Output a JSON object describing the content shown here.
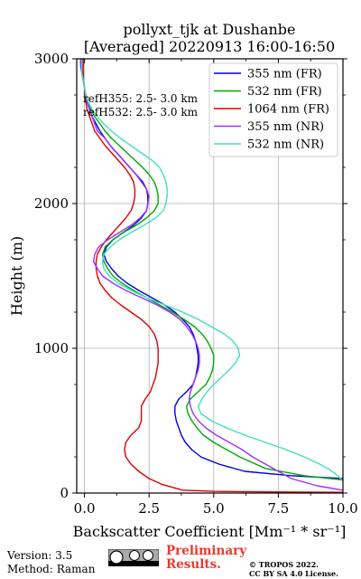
{
  "chart_data": {
    "type": "line",
    "title_line1": "pollyxt_tjk at Dushanbe",
    "title_line2": "[Averaged] 20220913 16:00-16:50",
    "xlabel": "Backscatter Coefficient [Mm⁻¹ * sr⁻¹]",
    "ylabel": "Height (m)",
    "xlim": [
      -0.3,
      10.0
    ],
    "ylim": [
      0,
      3000
    ],
    "xticks": [
      0.0,
      2.5,
      5.0,
      7.5,
      10.0
    ],
    "xtick_labels": [
      "0.0",
      "2.5",
      "5.0",
      "7.5",
      "10.0"
    ],
    "yticks": [
      0,
      1000,
      2000,
      3000
    ],
    "ytick_labels": [
      "0",
      "1000",
      "2000",
      "3000"
    ],
    "grid": true,
    "legend_position": "top-right",
    "annotations": [
      "refH355:  2.5- 3.0 km",
      "refH532:  2.5- 3.0 km"
    ],
    "series": [
      {
        "name": "355 nm (FR)",
        "color": "#0000dd",
        "points": [
          [
            10.0,
            100
          ],
          [
            8.0,
            120
          ],
          [
            6.2,
            150
          ],
          [
            5.2,
            200
          ],
          [
            4.5,
            250
          ],
          [
            4.15,
            300
          ],
          [
            3.9,
            350
          ],
          [
            3.75,
            400
          ],
          [
            3.65,
            450
          ],
          [
            3.55,
            500
          ],
          [
            3.5,
            550
          ],
          [
            3.5,
            600
          ],
          [
            3.65,
            650
          ],
          [
            3.95,
            700
          ],
          [
            4.2,
            750
          ],
          [
            4.3,
            800
          ],
          [
            4.35,
            850
          ],
          [
            4.4,
            900
          ],
          [
            4.4,
            950
          ],
          [
            4.35,
            1000
          ],
          [
            4.3,
            1050
          ],
          [
            4.2,
            1100
          ],
          [
            4.05,
            1150
          ],
          [
            3.8,
            1200
          ],
          [
            3.5,
            1250
          ],
          [
            3.1,
            1300
          ],
          [
            2.6,
            1350
          ],
          [
            2.1,
            1400
          ],
          [
            1.65,
            1450
          ],
          [
            1.3,
            1500
          ],
          [
            1.05,
            1550
          ],
          [
            0.85,
            1600
          ],
          [
            0.75,
            1650
          ],
          [
            0.85,
            1700
          ],
          [
            1.1,
            1750
          ],
          [
            1.5,
            1800
          ],
          [
            1.9,
            1850
          ],
          [
            2.2,
            1900
          ],
          [
            2.4,
            1950
          ],
          [
            2.45,
            2000
          ],
          [
            2.45,
            2050
          ],
          [
            2.4,
            2100
          ],
          [
            2.25,
            2150
          ],
          [
            2.0,
            2200
          ],
          [
            1.75,
            2250
          ],
          [
            1.5,
            2300
          ],
          [
            1.25,
            2350
          ],
          [
            1.0,
            2400
          ],
          [
            0.8,
            2450
          ],
          [
            0.6,
            2500
          ],
          [
            0.45,
            2550
          ],
          [
            0.3,
            2600
          ],
          [
            0.2,
            2650
          ],
          [
            0.1,
            2700
          ],
          [
            0.05,
            2750
          ],
          [
            0.0,
            2800
          ],
          [
            -0.05,
            2850
          ],
          [
            -0.1,
            2900
          ],
          [
            -0.1,
            2950
          ],
          [
            -0.1,
            3000
          ]
        ]
      },
      {
        "name": "532 nm (FR)",
        "color": "#00aa00",
        "points": [
          [
            10.0,
            90
          ],
          [
            8.5,
            120
          ],
          [
            7.0,
            170
          ],
          [
            6.0,
            250
          ],
          [
            5.5,
            300
          ],
          [
            5.0,
            350
          ],
          [
            4.6,
            400
          ],
          [
            4.35,
            450
          ],
          [
            4.15,
            500
          ],
          [
            4.0,
            550
          ],
          [
            3.95,
            600
          ],
          [
            4.1,
            650
          ],
          [
            4.4,
            700
          ],
          [
            4.7,
            750
          ],
          [
            4.85,
            800
          ],
          [
            4.95,
            850
          ],
          [
            5.0,
            900
          ],
          [
            5.0,
            950
          ],
          [
            4.9,
            1000
          ],
          [
            4.75,
            1050
          ],
          [
            4.55,
            1100
          ],
          [
            4.25,
            1150
          ],
          [
            3.85,
            1200
          ],
          [
            3.4,
            1250
          ],
          [
            2.9,
            1300
          ],
          [
            2.4,
            1350
          ],
          [
            1.9,
            1400
          ],
          [
            1.45,
            1450
          ],
          [
            1.1,
            1500
          ],
          [
            0.9,
            1550
          ],
          [
            0.75,
            1600
          ],
          [
            0.7,
            1650
          ],
          [
            0.8,
            1700
          ],
          [
            1.1,
            1750
          ],
          [
            1.5,
            1800
          ],
          [
            2.0,
            1850
          ],
          [
            2.4,
            1900
          ],
          [
            2.7,
            1950
          ],
          [
            2.85,
            2000
          ],
          [
            2.85,
            2050
          ],
          [
            2.8,
            2100
          ],
          [
            2.7,
            2150
          ],
          [
            2.5,
            2200
          ],
          [
            2.25,
            2250
          ],
          [
            1.95,
            2300
          ],
          [
            1.65,
            2350
          ],
          [
            1.35,
            2400
          ],
          [
            1.05,
            2450
          ],
          [
            0.8,
            2500
          ],
          [
            0.6,
            2550
          ],
          [
            0.4,
            2600
          ],
          [
            0.25,
            2650
          ],
          [
            0.12,
            2700
          ],
          [
            0.05,
            2750
          ],
          [
            0.0,
            2800
          ],
          [
            -0.05,
            2850
          ],
          [
            -0.05,
            2900
          ],
          [
            -0.08,
            2950
          ],
          [
            -0.08,
            3000
          ]
        ]
      },
      {
        "name": "1064 nm (FR)",
        "color": "#dd0000",
        "points": [
          [
            10.0,
            5
          ],
          [
            7.0,
            8
          ],
          [
            5.0,
            12
          ],
          [
            3.8,
            20
          ],
          [
            3.0,
            60
          ],
          [
            2.5,
            100
          ],
          [
            2.1,
            150
          ],
          [
            1.8,
            200
          ],
          [
            1.6,
            250
          ],
          [
            1.55,
            300
          ],
          [
            1.6,
            350
          ],
          [
            1.8,
            400
          ],
          [
            2.1,
            450
          ],
          [
            2.2,
            500
          ],
          [
            2.2,
            550
          ],
          [
            2.2,
            600
          ],
          [
            2.35,
            650
          ],
          [
            2.55,
            700
          ],
          [
            2.65,
            750
          ],
          [
            2.75,
            800
          ],
          [
            2.8,
            850
          ],
          [
            2.85,
            900
          ],
          [
            2.85,
            950
          ],
          [
            2.85,
            1000
          ],
          [
            2.8,
            1050
          ],
          [
            2.7,
            1100
          ],
          [
            2.5,
            1150
          ],
          [
            2.2,
            1200
          ],
          [
            1.8,
            1250
          ],
          [
            1.4,
            1300
          ],
          [
            1.05,
            1350
          ],
          [
            0.8,
            1400
          ],
          [
            0.6,
            1450
          ],
          [
            0.5,
            1500
          ],
          [
            0.45,
            1550
          ],
          [
            0.45,
            1600
          ],
          [
            0.5,
            1650
          ],
          [
            0.65,
            1700
          ],
          [
            0.85,
            1750
          ],
          [
            1.1,
            1800
          ],
          [
            1.35,
            1850
          ],
          [
            1.6,
            1900
          ],
          [
            1.8,
            1950
          ],
          [
            1.9,
            2000
          ],
          [
            1.95,
            2050
          ],
          [
            1.95,
            2100
          ],
          [
            1.9,
            2150
          ],
          [
            1.75,
            2200
          ],
          [
            1.55,
            2250
          ],
          [
            1.3,
            2300
          ],
          [
            1.05,
            2350
          ],
          [
            0.8,
            2400
          ],
          [
            0.6,
            2450
          ],
          [
            0.4,
            2500
          ],
          [
            0.3,
            2550
          ],
          [
            0.2,
            2600
          ],
          [
            0.1,
            2650
          ],
          [
            0.05,
            2700
          ],
          [
            0.0,
            2750
          ],
          [
            0.0,
            2800
          ],
          [
            -0.05,
            2850
          ],
          [
            -0.05,
            2900
          ],
          [
            -0.05,
            2950
          ],
          [
            -0.05,
            3000
          ]
        ]
      },
      {
        "name": "355 nm (NR)",
        "color": "#9b30ff",
        "points": [
          [
            10.0,
            20
          ],
          [
            9.0,
            50
          ],
          [
            8.0,
            100
          ],
          [
            7.5,
            150
          ],
          [
            7.0,
            200
          ],
          [
            6.5,
            250
          ],
          [
            6.1,
            300
          ],
          [
            5.6,
            350
          ],
          [
            5.1,
            400
          ],
          [
            4.7,
            450
          ],
          [
            4.4,
            500
          ],
          [
            4.2,
            550
          ],
          [
            4.1,
            600
          ],
          [
            4.05,
            650
          ],
          [
            4.1,
            700
          ],
          [
            4.2,
            750
          ],
          [
            4.3,
            800
          ],
          [
            4.4,
            850
          ],
          [
            4.45,
            900
          ],
          [
            4.45,
            950
          ],
          [
            4.4,
            1000
          ],
          [
            4.3,
            1050
          ],
          [
            4.15,
            1100
          ],
          [
            3.95,
            1150
          ],
          [
            3.7,
            1200
          ],
          [
            3.3,
            1250
          ],
          [
            2.8,
            1300
          ],
          [
            2.2,
            1350
          ],
          [
            1.6,
            1400
          ],
          [
            1.1,
            1450
          ],
          [
            0.7,
            1500
          ],
          [
            0.5,
            1550
          ],
          [
            0.35,
            1600
          ],
          [
            0.4,
            1650
          ],
          [
            0.55,
            1700
          ],
          [
            0.9,
            1750
          ],
          [
            1.35,
            1800
          ],
          [
            1.8,
            1850
          ],
          [
            2.15,
            1900
          ],
          [
            2.4,
            1950
          ],
          [
            2.45,
            2000
          ],
          [
            2.5,
            2050
          ],
          [
            2.4,
            2100
          ],
          [
            2.2,
            2150
          ],
          [
            2.0,
            2200
          ],
          [
            1.75,
            2250
          ],
          [
            1.5,
            2300
          ],
          [
            1.25,
            2350
          ],
          [
            1.0,
            2400
          ],
          [
            0.8,
            2450
          ],
          [
            0.5,
            2500
          ],
          [
            0.4,
            2550
          ],
          [
            0.3,
            2600
          ],
          [
            0.2,
            2650
          ],
          [
            0.12,
            2700
          ],
          [
            0.05,
            2750
          ],
          [
            0.0,
            2800
          ],
          [
            -0.05,
            2850
          ],
          [
            -0.1,
            2900
          ],
          [
            -0.15,
            2950
          ],
          [
            -0.15,
            3000
          ]
        ]
      },
      {
        "name": "532 nm (NR)",
        "color": "#40e0c0",
        "points": [
          [
            10.0,
            80
          ],
          [
            9.8,
            120
          ],
          [
            9.5,
            160
          ],
          [
            9.1,
            200
          ],
          [
            8.5,
            250
          ],
          [
            7.8,
            300
          ],
          [
            7.0,
            350
          ],
          [
            6.2,
            400
          ],
          [
            5.5,
            450
          ],
          [
            4.9,
            500
          ],
          [
            4.5,
            550
          ],
          [
            4.4,
            600
          ],
          [
            4.55,
            650
          ],
          [
            4.75,
            700
          ],
          [
            5.0,
            750
          ],
          [
            5.3,
            800
          ],
          [
            5.6,
            850
          ],
          [
            5.85,
            900
          ],
          [
            6.0,
            950
          ],
          [
            5.95,
            1000
          ],
          [
            5.75,
            1050
          ],
          [
            5.4,
            1100
          ],
          [
            4.9,
            1150
          ],
          [
            4.4,
            1200
          ],
          [
            3.8,
            1250
          ],
          [
            3.1,
            1300
          ],
          [
            2.4,
            1350
          ],
          [
            1.8,
            1400
          ],
          [
            1.3,
            1450
          ],
          [
            0.95,
            1500
          ],
          [
            0.75,
            1550
          ],
          [
            0.7,
            1600
          ],
          [
            0.75,
            1650
          ],
          [
            1.0,
            1700
          ],
          [
            1.35,
            1750
          ],
          [
            1.8,
            1800
          ],
          [
            2.3,
            1850
          ],
          [
            2.75,
            1900
          ],
          [
            3.05,
            1950
          ],
          [
            3.15,
            2000
          ],
          [
            3.2,
            2050
          ],
          [
            3.2,
            2100
          ],
          [
            3.15,
            2150
          ],
          [
            3.05,
            2200
          ],
          [
            2.9,
            2250
          ],
          [
            2.6,
            2300
          ],
          [
            2.2,
            2350
          ],
          [
            1.8,
            2400
          ],
          [
            1.4,
            2450
          ],
          [
            1.05,
            2500
          ],
          [
            0.75,
            2550
          ],
          [
            0.5,
            2600
          ],
          [
            0.3,
            2650
          ],
          [
            0.15,
            2700
          ],
          [
            0.05,
            2750
          ],
          [
            0.0,
            2800
          ],
          [
            -0.05,
            2850
          ],
          [
            -0.1,
            2900
          ],
          [
            -0.1,
            2950
          ],
          [
            -0.1,
            3000
          ]
        ]
      }
    ]
  },
  "footer": {
    "version": "Version: 3.5",
    "method": "Method: Raman",
    "preliminary_line1": "Preliminary",
    "preliminary_line2": "Results.",
    "copyright_line1": "© TROPOS 2022.",
    "copyright_line2": "CC BY SA 4.0 License."
  }
}
